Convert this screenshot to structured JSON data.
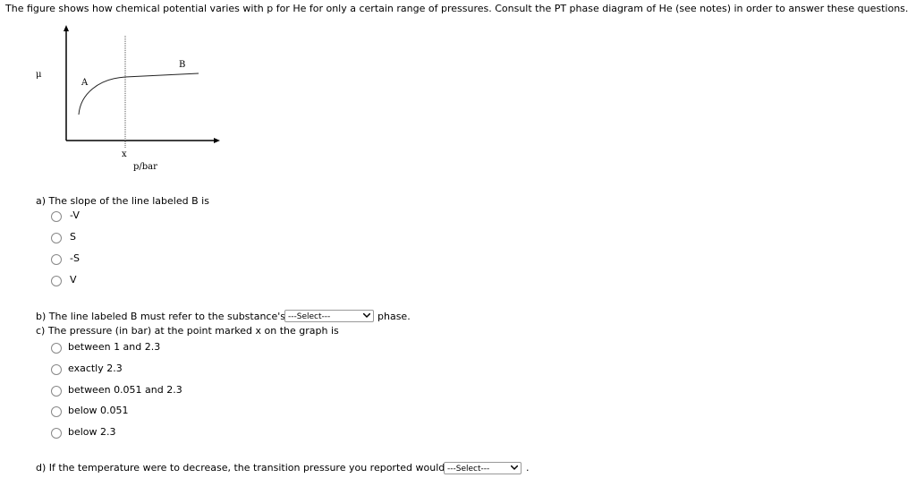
{
  "intro": "The figure shows how chemical potential varies with p for He for only a certain range of pressures. Consult the PT phase diagram of He (see notes) in order to answer these questions.",
  "figure": {
    "y_label": "μ",
    "curve_a_label": "A",
    "curve_b_label": "B",
    "point_label": "x",
    "x_label": "p/bar"
  },
  "question_a": {
    "text": "a) The slope of the line labeled B is",
    "options": [
      "-V",
      "S",
      "-S",
      "V"
    ]
  },
  "question_b": {
    "text": "b) The line labeled B must refer to the substance's",
    "select": "---Select---",
    "after": "phase."
  },
  "question_c": {
    "text": "c) The pressure (in bar) at the point marked x on the graph is",
    "options": [
      "between 1 and 2.3",
      "exactly 2.3",
      "between 0.051 and 2.3",
      "below 0.051",
      "below 2.3"
    ]
  },
  "question_d": {
    "text": "d) If the temperature were to decrease, the transition pressure you reported would",
    "select": "---Select---",
    "after": "."
  }
}
